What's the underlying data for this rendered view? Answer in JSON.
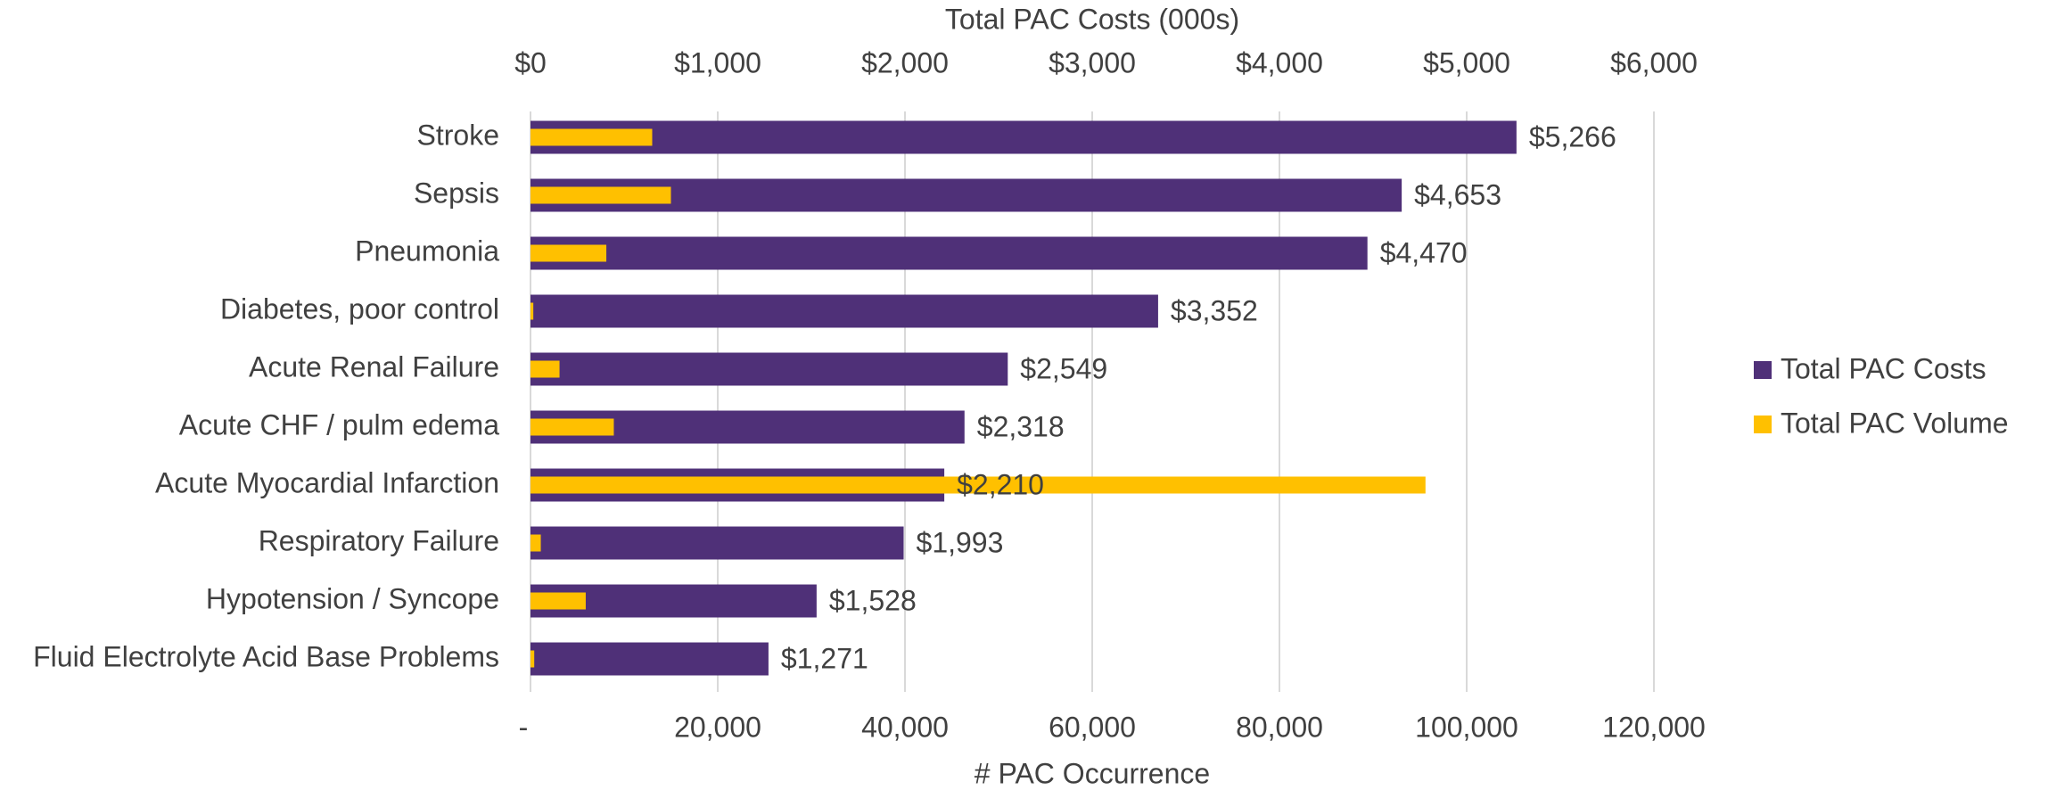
{
  "chart_data": {
    "type": "bar",
    "orientation": "horizontal",
    "x2label": "Total PAC Costs (000s)",
    "xlabel": "# PAC Occurrence",
    "categories": [
      "Stroke",
      "Sepsis",
      "Pneumonia",
      "Diabetes, poor control",
      "Acute Renal Failure",
      "Acute CHF / pulm edema",
      "Acute Myocardial Infarction",
      "Respiratory Failure",
      "Hypotension / Syncope",
      "Fluid Electrolyte Acid Base Problems"
    ],
    "series": [
      {
        "name": "Total PAC Costs",
        "color": "#4f3078",
        "axis": "x2",
        "values": [
          5266,
          4653,
          4470,
          3352,
          2549,
          2318,
          2210,
          1993,
          1528,
          1271
        ],
        "value_labels": [
          "$5,266",
          "$4,653",
          "$4,470",
          "$3,352",
          "$2,549",
          "$2,318",
          "$2,210",
          "$1,993",
          "$1,528",
          "$1,271"
        ]
      },
      {
        "name": "Total PAC Volume",
        "color": "#ffc000",
        "values": [
          13000,
          15000,
          8100,
          300,
          3100,
          8900,
          95600,
          1100,
          5900,
          400
        ]
      }
    ],
    "x2lim": [
      0,
      6000
    ],
    "x2ticks": [
      {
        "value": 0,
        "label": "$0"
      },
      {
        "value": 1000,
        "label": "$1,000"
      },
      {
        "value": 2000,
        "label": "$2,000"
      },
      {
        "value": 3000,
        "label": "$3,000"
      },
      {
        "value": 4000,
        "label": "$4,000"
      },
      {
        "value": 5000,
        "label": "$5,000"
      },
      {
        "value": 6000,
        "label": "$6,000"
      }
    ],
    "xlim": [
      0,
      120000
    ],
    "xticks": [
      {
        "value": 0,
        "label": "-"
      },
      {
        "value": 20000,
        "label": "20,000"
      },
      {
        "value": 40000,
        "label": "40,000"
      },
      {
        "value": 60000,
        "label": "60,000"
      },
      {
        "value": 80000,
        "label": "80,000"
      },
      {
        "value": 100000,
        "label": "100,000"
      },
      {
        "value": 120000,
        "label": "120,000"
      }
    ],
    "grid": true,
    "legend": "right"
  }
}
